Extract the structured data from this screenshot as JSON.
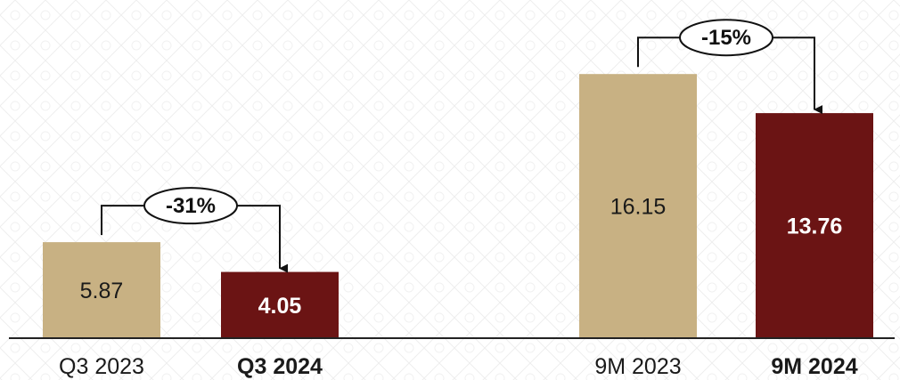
{
  "chart_data": {
    "type": "bar",
    "categories": [
      "Q3 2023",
      "Q3 2024",
      "9M 2023",
      "9M 2024"
    ],
    "values": [
      5.87,
      4.05,
      16.15,
      13.76
    ],
    "value_labels": [
      "5.87",
      "4.05",
      "16.15",
      "13.76"
    ],
    "emphasized": [
      false,
      true,
      false,
      true
    ],
    "bar_colors": [
      "#c8b183",
      "#6b1414",
      "#c8b183",
      "#6b1414"
    ],
    "value_label_colors": [
      "#1a1a1a",
      "#ffffff",
      "#1a1a1a",
      "#ffffff"
    ],
    "ylim": [
      0,
      18.5
    ],
    "grid": false,
    "changes": [
      {
        "from": "Q3 2023",
        "to": "Q3 2024",
        "label": "-31%"
      },
      {
        "from": "9M 2023",
        "to": "9M 2024",
        "label": "-15%"
      }
    ]
  }
}
